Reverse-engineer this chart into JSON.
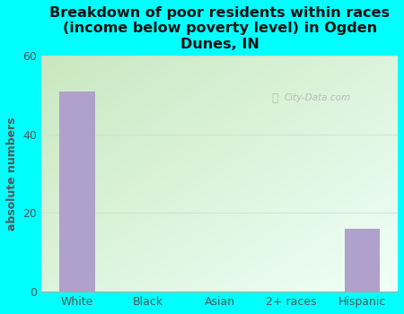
{
  "categories": [
    "White",
    "Black",
    "Asian",
    "2+ races",
    "Hispanic"
  ],
  "values": [
    51,
    0,
    0,
    0,
    16
  ],
  "bar_color": "#b0a0cc",
  "title": "Breakdown of poor residents within races\n(income below poverty level) in Ogden\nDunes, IN",
  "ylabel": "absolute numbers",
  "ylim": [
    0,
    60
  ],
  "yticks": [
    0,
    20,
    40,
    60
  ],
  "bg_color": "#00ffff",
  "plot_grad_topleft": "#c8e8c0",
  "plot_grad_bottomright": "#f0fff8",
  "watermark": "City-Data.com",
  "title_fontsize": 11.5,
  "ylabel_fontsize": 9,
  "tick_fontsize": 9,
  "title_color": "#111111",
  "tick_color": "#555555",
  "grid_color": "#ccddcc",
  "grid_alpha": 0.7
}
